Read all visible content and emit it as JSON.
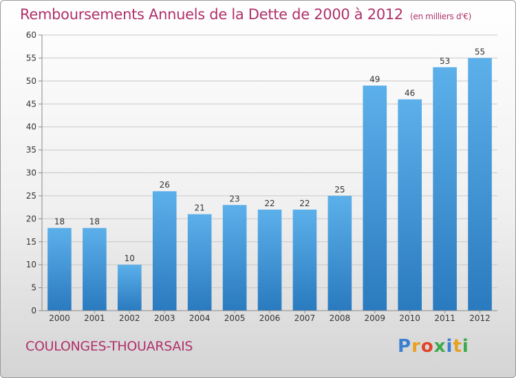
{
  "header": {
    "title": "Remboursements Annuels de la Dette de 2000 à 2012",
    "subtitle": "(en milliers d'€)"
  },
  "footer": {
    "place": "COULONGES-THOUARSAIS",
    "logo": "Proxiti",
    "logo_colors": [
      "#3b7fd0",
      "#e8a020",
      "#e0442a",
      "#3aaa4a",
      "#3b7fd0",
      "#e8a020",
      "#3aaa4a"
    ]
  },
  "chart_data": {
    "type": "bar",
    "title": "Remboursements Annuels de la Dette de 2000 à 2012",
    "categories": [
      "2000",
      "2001",
      "2002",
      "2003",
      "2004",
      "2005",
      "2006",
      "2007",
      "2008",
      "2009",
      "2010",
      "2011",
      "2012"
    ],
    "values": [
      18,
      18,
      10,
      26,
      21,
      23,
      22,
      22,
      25,
      49,
      46,
      53,
      55
    ],
    "ylim": [
      0,
      60
    ],
    "yticks": [
      0,
      5,
      10,
      15,
      20,
      25,
      30,
      35,
      40,
      45,
      50,
      55,
      60
    ],
    "grid": true,
    "bar_color": "#3f95d8"
  }
}
